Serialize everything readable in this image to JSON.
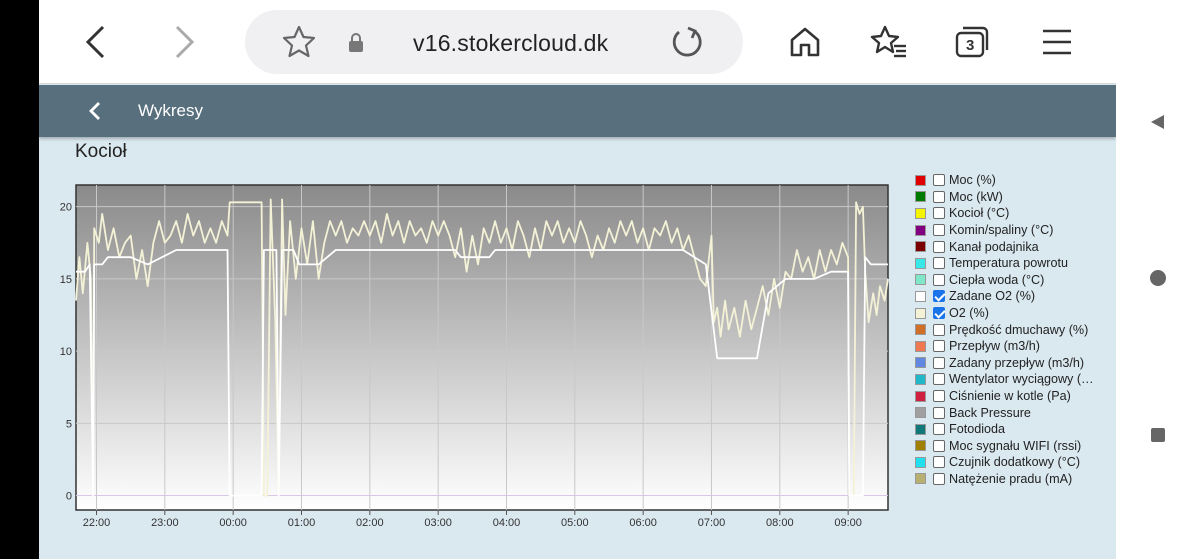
{
  "browser": {
    "url": "v16.stokercloud.dk",
    "tab_count": "3"
  },
  "appbar": {
    "title": "Wykresy"
  },
  "chart_title": "Kocioł",
  "chart_data": {
    "type": "line",
    "title": "Kocioł",
    "xlabel": "",
    "ylabel": "",
    "x_ticks": [
      "22:00",
      "23:00",
      "00:00",
      "01:00",
      "02:00",
      "03:00",
      "04:00",
      "05:00",
      "06:00",
      "07:00",
      "08:00",
      "09:00"
    ],
    "y_ticks": [
      0,
      5,
      10,
      15,
      20
    ],
    "xlim": [
      "21:42",
      "09:35"
    ],
    "ylim": [
      -1,
      21.5
    ],
    "grid": true,
    "legend_position": "right",
    "series": [
      {
        "name": "Zadane O2 (%)",
        "color": "#ffffff",
        "points": [
          [
            "21:42",
            15.5
          ],
          [
            "21:50",
            15.5
          ],
          [
            "21:54",
            16.0
          ],
          [
            "21:57",
            0.0
          ],
          [
            "21:58",
            16.0
          ],
          [
            "22:05",
            16.0
          ],
          [
            "22:10",
            16.5
          ],
          [
            "22:30",
            16.5
          ],
          [
            "22:45",
            16.0
          ],
          [
            "23:10",
            17.0
          ],
          [
            "23:55",
            17.0
          ],
          [
            "23:57",
            0.0
          ],
          [
            "00:25",
            0.0
          ],
          [
            "00:27",
            17.0
          ],
          [
            "00:38",
            17.0
          ],
          [
            "00:40",
            0.0
          ],
          [
            "00:43",
            17.0
          ],
          [
            "00:53",
            17.0
          ],
          [
            "00:58",
            16.0
          ],
          [
            "01:15",
            16.0
          ],
          [
            "01:30",
            17.0
          ],
          [
            "02:30",
            17.0
          ],
          [
            "03:15",
            17.0
          ],
          [
            "03:20",
            16.5
          ],
          [
            "03:45",
            16.5
          ],
          [
            "03:50",
            17.0
          ],
          [
            "05:30",
            17.0
          ],
          [
            "05:55",
            17.0
          ],
          [
            "06:35",
            17.0
          ],
          [
            "06:55",
            16.0
          ],
          [
            "07:05",
            9.5
          ],
          [
            "07:40",
            9.5
          ],
          [
            "07:50",
            14.0
          ],
          [
            "08:05",
            15.0
          ],
          [
            "08:30",
            15.0
          ],
          [
            "08:45",
            15.5
          ],
          [
            "09:00",
            15.5
          ],
          [
            "09:01",
            0.0
          ],
          [
            "09:13",
            0.0
          ],
          [
            "09:15",
            16.5
          ],
          [
            "09:20",
            16.0
          ],
          [
            "09:35",
            16.0
          ]
        ]
      },
      {
        "name": "O2 (%)",
        "color": "#f4f2d6",
        "points": [
          [
            "21:42",
            13.5
          ],
          [
            "21:45",
            16.5
          ],
          [
            "21:48",
            14.0
          ],
          [
            "21:52",
            17.5
          ],
          [
            "21:55",
            15.0
          ],
          [
            "21:57",
            0.0
          ],
          [
            "21:58",
            18.5
          ],
          [
            "22:02",
            17.5
          ],
          [
            "22:05",
            19.5
          ],
          [
            "22:10",
            17.0
          ],
          [
            "22:15",
            18.5
          ],
          [
            "22:20",
            16.5
          ],
          [
            "22:25",
            17.5
          ],
          [
            "22:30",
            18.0
          ],
          [
            "22:35",
            15.0
          ],
          [
            "22:40",
            17.0
          ],
          [
            "22:45",
            14.5
          ],
          [
            "22:50",
            17.5
          ],
          [
            "22:55",
            19.0
          ],
          [
            "23:00",
            17.5
          ],
          [
            "23:05",
            18.0
          ],
          [
            "23:10",
            19.0
          ],
          [
            "23:15",
            17.5
          ],
          [
            "23:20",
            19.5
          ],
          [
            "23:25",
            18.0
          ],
          [
            "23:30",
            19.0
          ],
          [
            "23:35",
            17.5
          ],
          [
            "23:40",
            18.5
          ],
          [
            "23:45",
            17.5
          ],
          [
            "23:50",
            19.0
          ],
          [
            "23:55",
            18.0
          ],
          [
            "23:57",
            20.3
          ],
          [
            "00:25",
            20.3
          ],
          [
            "00:27",
            0.0
          ],
          [
            "00:30",
            0.0
          ],
          [
            "00:33",
            20.5
          ],
          [
            "00:37",
            12.0
          ],
          [
            "00:40",
            0.0
          ],
          [
            "00:43",
            20.5
          ],
          [
            "00:46",
            12.5
          ],
          [
            "00:50",
            19.0
          ],
          [
            "00:55",
            15.0
          ],
          [
            "01:00",
            18.5
          ],
          [
            "01:05",
            16.0
          ],
          [
            "01:10",
            19.0
          ],
          [
            "01:15",
            15.0
          ],
          [
            "01:20",
            17.5
          ],
          [
            "01:25",
            19.0
          ],
          [
            "01:30",
            18.0
          ],
          [
            "01:35",
            19.0
          ],
          [
            "01:40",
            17.5
          ],
          [
            "01:45",
            18.5
          ],
          [
            "01:50",
            18.0
          ],
          [
            "01:55",
            19.0
          ],
          [
            "02:00",
            18.0
          ],
          [
            "02:05",
            19.0
          ],
          [
            "02:10",
            17.5
          ],
          [
            "02:15",
            19.5
          ],
          [
            "02:20",
            18.0
          ],
          [
            "02:25",
            19.0
          ],
          [
            "02:30",
            17.5
          ],
          [
            "02:35",
            19.0
          ],
          [
            "02:40",
            18.0
          ],
          [
            "02:45",
            18.5
          ],
          [
            "02:50",
            17.5
          ],
          [
            "02:55",
            19.0
          ],
          [
            "03:00",
            18.0
          ],
          [
            "03:05",
            19.0
          ],
          [
            "03:10",
            18.0
          ],
          [
            "03:15",
            16.5
          ],
          [
            "03:20",
            18.5
          ],
          [
            "03:25",
            15.5
          ],
          [
            "03:30",
            18.0
          ],
          [
            "03:35",
            16.0
          ],
          [
            "03:40",
            18.5
          ],
          [
            "03:45",
            17.5
          ],
          [
            "03:50",
            19.0
          ],
          [
            "03:55",
            17.5
          ],
          [
            "04:00",
            18.5
          ],
          [
            "04:05",
            17.0
          ],
          [
            "04:10",
            19.0
          ],
          [
            "04:15",
            18.0
          ],
          [
            "04:20",
            16.5
          ],
          [
            "04:25",
            18.5
          ],
          [
            "04:30",
            17.0
          ],
          [
            "04:35",
            19.0
          ],
          [
            "04:40",
            18.0
          ],
          [
            "04:45",
            19.0
          ],
          [
            "04:50",
            17.5
          ],
          [
            "04:55",
            18.5
          ],
          [
            "05:00",
            17.5
          ],
          [
            "05:05",
            19.0
          ],
          [
            "05:10",
            18.0
          ],
          [
            "05:15",
            16.5
          ],
          [
            "05:20",
            18.0
          ],
          [
            "05:25",
            17.0
          ],
          [
            "05:30",
            18.5
          ],
          [
            "05:35",
            17.5
          ],
          [
            "05:40",
            19.0
          ],
          [
            "05:45",
            18.0
          ],
          [
            "05:50",
            19.0
          ],
          [
            "05:55",
            17.5
          ],
          [
            "06:00",
            18.5
          ],
          [
            "06:05",
            17.0
          ],
          [
            "06:10",
            18.5
          ],
          [
            "06:15",
            18.0
          ],
          [
            "06:20",
            19.0
          ],
          [
            "06:25",
            17.5
          ],
          [
            "06:30",
            18.5
          ],
          [
            "06:35",
            17.0
          ],
          [
            "06:40",
            18.0
          ],
          [
            "06:45",
            16.5
          ],
          [
            "06:50",
            15.0
          ],
          [
            "06:55",
            14.5
          ],
          [
            "07:00",
            18.0
          ],
          [
            "07:02",
            12.0
          ],
          [
            "07:05",
            13.0
          ],
          [
            "07:08",
            11.0
          ],
          [
            "07:12",
            13.5
          ],
          [
            "07:15",
            11.5
          ],
          [
            "07:20",
            13.0
          ],
          [
            "07:25",
            11.0
          ],
          [
            "07:30",
            13.5
          ],
          [
            "07:35",
            11.5
          ],
          [
            "07:40",
            13.0
          ],
          [
            "07:45",
            14.5
          ],
          [
            "07:50",
            12.5
          ],
          [
            "07:55",
            15.0
          ],
          [
            "08:00",
            13.0
          ],
          [
            "08:05",
            15.5
          ],
          [
            "08:10",
            15.0
          ],
          [
            "08:15",
            17.0
          ],
          [
            "08:20",
            15.5
          ],
          [
            "08:25",
            16.5
          ],
          [
            "08:30",
            15.0
          ],
          [
            "08:35",
            17.0
          ],
          [
            "08:40",
            15.5
          ],
          [
            "08:45",
            17.0
          ],
          [
            "08:50",
            16.0
          ],
          [
            "08:55",
            17.5
          ],
          [
            "09:00",
            16.5
          ],
          [
            "09:01",
            0.0
          ],
          [
            "09:05",
            0.0
          ],
          [
            "09:07",
            20.3
          ],
          [
            "09:10",
            19.5
          ],
          [
            "09:13",
            20.0
          ],
          [
            "09:15",
            15.5
          ],
          [
            "09:18",
            12.0
          ],
          [
            "09:22",
            14.0
          ],
          [
            "09:25",
            12.5
          ],
          [
            "09:28",
            14.5
          ],
          [
            "09:32",
            13.5
          ],
          [
            "09:35",
            15.0
          ]
        ]
      }
    ]
  },
  "legend": [
    {
      "label": "Moc (%)",
      "color": "#e00000",
      "checked": false
    },
    {
      "label": "Moc (kW)",
      "color": "#007a00",
      "checked": false
    },
    {
      "label": "Kocioł (°C)",
      "color": "#f4f400",
      "checked": false
    },
    {
      "label": "Komin/spaliny (°C)",
      "color": "#800080",
      "checked": false
    },
    {
      "label": "Kanał podajnika",
      "color": "#7a0000",
      "checked": false
    },
    {
      "label": "Temperatura powrotu",
      "color": "#38e8e8",
      "checked": false
    },
    {
      "label": "Ciepła woda (°C)",
      "color": "#80e8c8",
      "checked": false
    },
    {
      "label": "Zadane O2 (%)",
      "color": "#ffffff",
      "checked": true
    },
    {
      "label": "O2 (%)",
      "color": "#f4f2d6",
      "checked": true
    },
    {
      "label": "Prędkość dmuchawy (%)",
      "color": "#d07028",
      "checked": false
    },
    {
      "label": "Przepływ (m3/h)",
      "color": "#f07850",
      "checked": false
    },
    {
      "label": "Zadany przepływ (m3/h)",
      "color": "#6088e0",
      "checked": false
    },
    {
      "label": "Wentylator wyciągowy (…",
      "color": "#20b8c8",
      "checked": false
    },
    {
      "label": "Ciśnienie w kotle (Pa)",
      "color": "#d02040",
      "checked": false
    },
    {
      "label": "Back Pressure",
      "color": "#a0a0a0",
      "checked": false
    },
    {
      "label": "Fotodioda",
      "color": "#107878",
      "checked": false
    },
    {
      "label": "Moc sygnału WIFI (rssi)",
      "color": "#a08000",
      "checked": false
    },
    {
      "label": "Czujnik dodatkowy (°C)",
      "color": "#20e0f0",
      "checked": false
    },
    {
      "label": "Natężenie pradu (mA)",
      "color": "#b8b070",
      "checked": false
    }
  ]
}
